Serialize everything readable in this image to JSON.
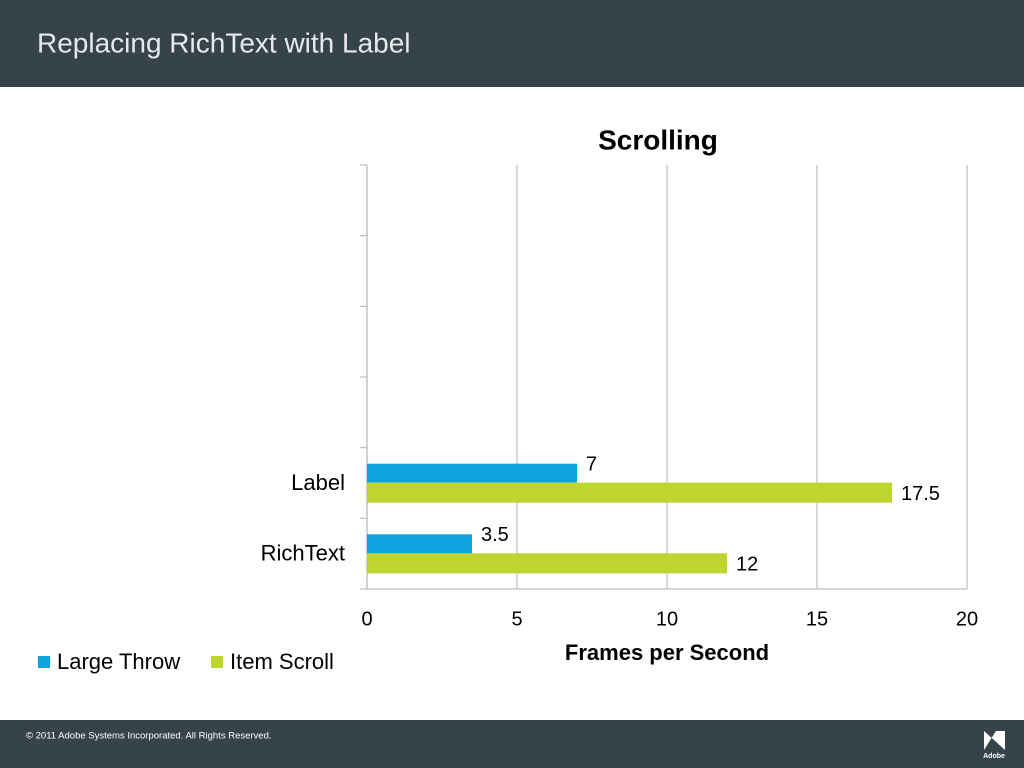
{
  "header": {
    "title": "Replacing RichText with Label"
  },
  "footer": {
    "copyright": "© 2011 Adobe Systems Incorporated.  All Rights Reserved.",
    "logo": "Adobe"
  },
  "chart_data": {
    "type": "bar",
    "orientation": "horizontal",
    "title": "Scrolling",
    "x_label": "Frames per Second",
    "categories": [
      "RichText",
      "Label",
      null,
      null,
      null,
      null
    ],
    "series": [
      {
        "name": "Large Throw",
        "color": "#0ea2e0",
        "values": [
          3.5,
          7,
          null,
          null,
          null,
          null
        ]
      },
      {
        "name": "Item Scroll",
        "color": "#bdd52e",
        "values": [
          12,
          17.5,
          null,
          null,
          null,
          null
        ]
      }
    ],
    "xlim": [
      0,
      20
    ],
    "xticks": [
      0,
      5,
      10,
      15,
      20
    ],
    "grid": true,
    "legend": "bottom-left"
  }
}
